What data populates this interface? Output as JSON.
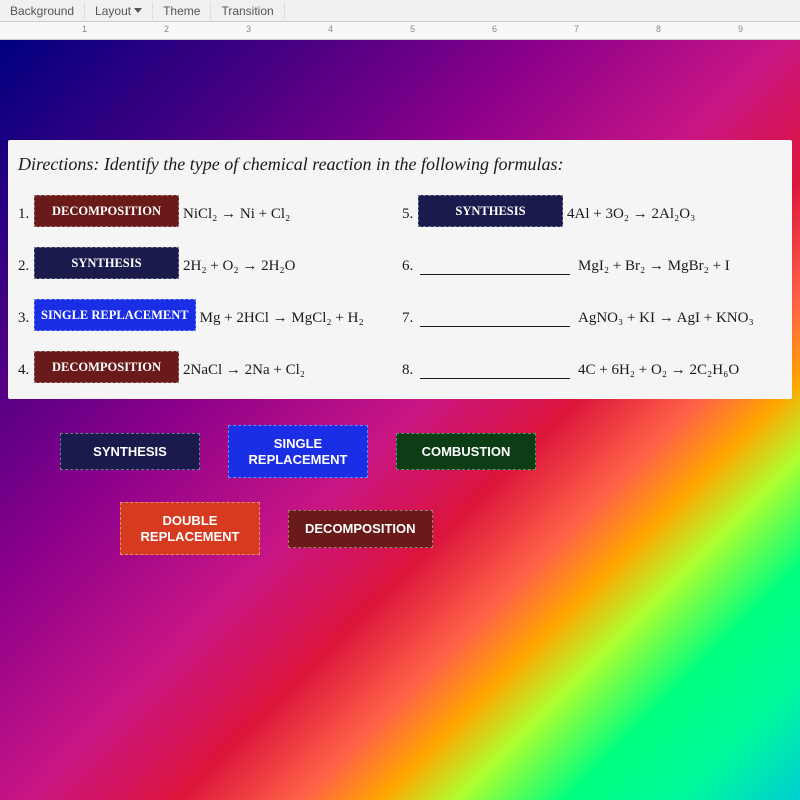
{
  "toolbar": {
    "items": [
      "Background",
      "Layout",
      "Theme",
      "Transition"
    ],
    "dropdown_index": 1
  },
  "ruler": {
    "marks": [
      1,
      2,
      3,
      4,
      5,
      6,
      7,
      8,
      9
    ]
  },
  "directions": "Directions: Identify the type of chemical reaction in the following formulas:",
  "colors": {
    "decomposition": "#6b1a1a",
    "synthesis_dark": "#1a1a4d",
    "single_replacement": "#1a2ee6",
    "combustion": "#0d3d14",
    "double_replacement": "#d63a1f"
  },
  "items": [
    {
      "num": "1.",
      "label": "DECOMPOSITION",
      "color": "#6b1a1a",
      "formula": "NiCl₂ → Ni + Cl₂"
    },
    {
      "num": "5.",
      "label": "SYNTHESIS",
      "color": "#1a1a4d",
      "formula": "4Al + 3O₂ → 2Al₂O₃"
    },
    {
      "num": "2.",
      "label": "SYNTHESIS",
      "color": "#1a1a4d",
      "formula": "2H₂ + O₂ → 2H₂O"
    },
    {
      "num": "6.",
      "label": "",
      "color": "",
      "formula": "MgI₂ + Br₂ → MgBr₂ + I"
    },
    {
      "num": "3.",
      "label": "SINGLE REPLACEMENT",
      "color": "#1a2ee6",
      "formula": "Mg + 2HCl → MgCl₂ + H₂"
    },
    {
      "num": "7.",
      "label": "",
      "color": "",
      "formula": "AgNO₃ + KI → AgI + KNO₃"
    },
    {
      "num": "4.",
      "label": "DECOMPOSITION",
      "color": "#6b1a1a",
      "formula": "2NaCl → 2Na + Cl₂"
    },
    {
      "num": "8.",
      "label": "",
      "color": "",
      "formula": "4C + 6H₂ + O₂ → 2C₂H₆O"
    }
  ],
  "chips_row1": [
    {
      "text": "SYNTHESIS",
      "color": "#1a1a4d"
    },
    {
      "text": "SINGLE REPLACEMENT",
      "color": "#1a2ee6"
    },
    {
      "text": "COMBUSTION",
      "color": "#0d3d14"
    }
  ],
  "chips_row2": [
    {
      "text": "DOUBLE REPLACEMENT",
      "color": "#d63a1f"
    },
    {
      "text": "DECOMPOSITION",
      "color": "#6b1a1a"
    }
  ]
}
